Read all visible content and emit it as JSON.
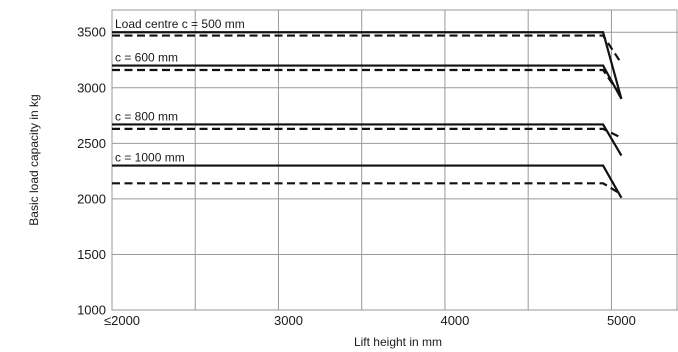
{
  "chart_data": {
    "type": "line",
    "xlabel": "Lift height in mm",
    "ylabel": "Basic load capacity in kg",
    "xlim": [
      2000,
      5400
    ],
    "ylim": [
      1000,
      3700
    ],
    "x_ticks": [
      2000,
      3000,
      4000,
      5000
    ],
    "x_tick_labels": [
      "≤2000",
      "3000",
      "4000",
      "5000"
    ],
    "x_gridlines": [
      2000,
      2500,
      3000,
      3500,
      4000,
      4500,
      5000
    ],
    "y_ticks": [
      1000,
      1500,
      2000,
      2500,
      3000,
      3500
    ],
    "y_tick_labels": [
      "1000",
      "1500",
      "2000",
      "2500",
      "3000",
      "3500"
    ],
    "y_gridlines": [
      1000,
      1500,
      2000,
      2500,
      3000,
      3500
    ],
    "grid": true,
    "series": [
      {
        "name": "Load centre c = 500 mm",
        "style": "solid",
        "x": [
          2000,
          4950,
          5060
        ],
        "y": [
          3500,
          3500,
          2900
        ]
      },
      {
        "name": "",
        "style": "dashed",
        "x": [
          2000,
          4950,
          5060
        ],
        "y": [
          3470,
          3470,
          3220
        ]
      },
      {
        "name": "c = 600 mm",
        "style": "solid",
        "x": [
          2000,
          4950,
          5060
        ],
        "y": [
          3200,
          3200,
          2900
        ]
      },
      {
        "name": "",
        "style": "dashed",
        "x": [
          2000,
          4950,
          5060
        ],
        "y": [
          3160,
          3160,
          2920
        ]
      },
      {
        "name": "c = 800 mm",
        "style": "solid",
        "x": [
          2000,
          4950,
          5060
        ],
        "y": [
          2670,
          2670,
          2390
        ]
      },
      {
        "name": "",
        "style": "dashed",
        "x": [
          2000,
          4950,
          5060
        ],
        "y": [
          2630,
          2630,
          2550
        ]
      },
      {
        "name": "c = 1000 mm",
        "style": "solid",
        "x": [
          2000,
          4950,
          5060
        ],
        "y": [
          2300,
          2300,
          2010
        ]
      },
      {
        "name": "",
        "style": "dashed",
        "x": [
          2000,
          4950,
          5060
        ],
        "y": [
          2140,
          2140,
          2040
        ]
      }
    ]
  }
}
